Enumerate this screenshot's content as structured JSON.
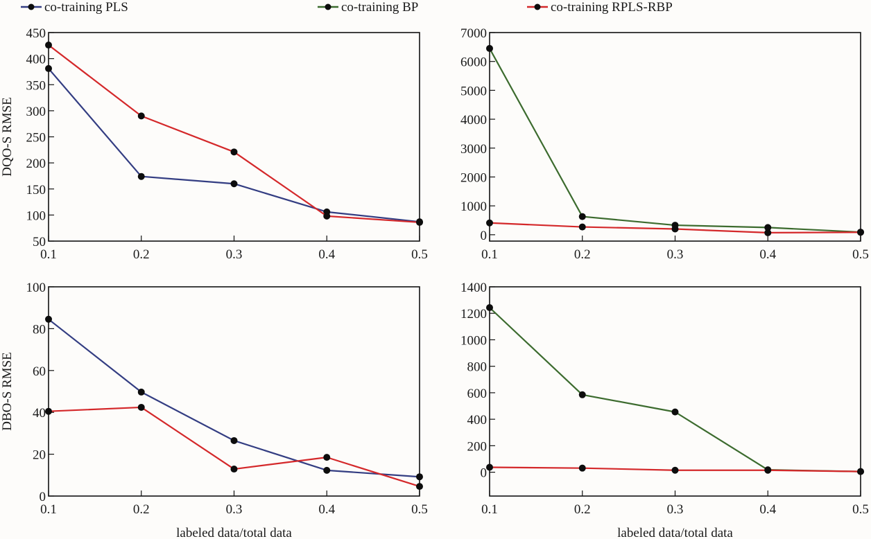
{
  "legend": {
    "position": "top",
    "items": [
      {
        "name": "co-training PLS",
        "color": "#333d82"
      },
      {
        "name": "co-training BP",
        "color": "#3c6b2e"
      },
      {
        "name": "co-training RPLS-RBP",
        "color": "#d4282a"
      }
    ]
  },
  "chart_data": [
    {
      "type": "line",
      "panel": "top-left",
      "title": "",
      "xlabel": "",
      "ylabel": "DQO-S RMSE",
      "x": [
        0.1,
        0.2,
        0.3,
        0.4,
        0.5
      ],
      "xticks": [
        "0.1",
        "0.2",
        "0.3",
        "0.4",
        "0.5"
      ],
      "xlim": [
        0.1,
        0.5
      ],
      "ylim": [
        50,
        450
      ],
      "yticks": [
        50,
        100,
        150,
        200,
        250,
        300,
        350,
        400,
        450
      ],
      "grid": false,
      "series": [
        {
          "name": "co-training PLS",
          "color": "#333d82",
          "values": [
            381,
            174,
            160,
            106,
            87
          ]
        },
        {
          "name": "co-training RPLS-RBP",
          "color": "#d4282a",
          "values": [
            426,
            290,
            221,
            98,
            86
          ]
        }
      ]
    },
    {
      "type": "line",
      "panel": "top-right",
      "title": "",
      "xlabel": "",
      "ylabel": "",
      "x": [
        0.1,
        0.2,
        0.3,
        0.4,
        0.5
      ],
      "xticks": [
        "0.1",
        "0.2",
        "0.3",
        "0.4",
        "0.5"
      ],
      "xlim": [
        0.1,
        0.5
      ],
      "ylim": [
        -220,
        7000
      ],
      "yticks": [
        0,
        1000,
        2000,
        3000,
        4000,
        5000,
        6000,
        7000
      ],
      "grid": false,
      "series": [
        {
          "name": "co-training BP",
          "color": "#3c6b2e",
          "values": [
            6450,
            630,
            330,
            250,
            90
          ]
        },
        {
          "name": "co-training RPLS-RBP",
          "color": "#d4282a",
          "values": [
            410,
            270,
            200,
            70,
            85
          ]
        }
      ]
    },
    {
      "type": "line",
      "panel": "bottom-left",
      "title": "",
      "xlabel": "labeled data/total data",
      "ylabel": "DBO-S RMSE",
      "x": [
        0.1,
        0.2,
        0.3,
        0.4,
        0.5
      ],
      "xticks": [
        "0.1",
        "0.2",
        "0.3",
        "0.4",
        "0.5"
      ],
      "xlim": [
        0.1,
        0.5
      ],
      "ylim": [
        0,
        100
      ],
      "yticks": [
        0,
        20,
        40,
        60,
        80,
        100
      ],
      "grid": false,
      "series": [
        {
          "name": "co-training PLS",
          "color": "#333d82",
          "values": [
            84.5,
            49.7,
            26.5,
            12.3,
            9.2
          ]
        },
        {
          "name": "co-training RPLS-RBP",
          "color": "#d4282a",
          "values": [
            40.5,
            42.4,
            12.9,
            18.5,
            4.6
          ]
        }
      ]
    },
    {
      "type": "line",
      "panel": "bottom-right",
      "title": "",
      "xlabel": "labeled data/total data",
      "ylabel": "",
      "x": [
        0.1,
        0.2,
        0.3,
        0.4,
        0.5
      ],
      "xticks": [
        "0.1",
        "0.2",
        "0.3",
        "0.4",
        "0.5"
      ],
      "xlim": [
        0.1,
        0.5
      ],
      "ylim": [
        -180,
        1400
      ],
      "yticks": [
        0,
        200,
        400,
        600,
        800,
        1000,
        1200,
        1400
      ],
      "grid": false,
      "series": [
        {
          "name": "co-training BP",
          "color": "#3c6b2e",
          "values": [
            1243,
            585,
            455,
            18,
            5
          ]
        },
        {
          "name": "co-training RPLS-RBP",
          "color": "#d4282a",
          "values": [
            37,
            31,
            15,
            15,
            5
          ]
        }
      ]
    }
  ]
}
